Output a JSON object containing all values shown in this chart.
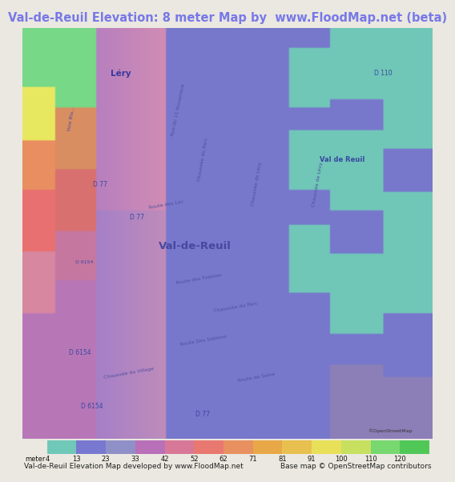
{
  "title": "Val-de-Reuil Elevation: 8 meter Map by  www.FloodMap.net (beta)",
  "title_color": "#7878e8",
  "title_fontsize": 10.5,
  "title_bg": "#eae8e0",
  "background_color": "#eae8e0",
  "colorbar_values": [
    4,
    13,
    23,
    33,
    42,
    52,
    62,
    71,
    81,
    91,
    100,
    110,
    120
  ],
  "colorbar_colors": [
    "#70c8b8",
    "#7878d0",
    "#9090c8",
    "#b870b8",
    "#d87898",
    "#e87870",
    "#e89060",
    "#e8a848",
    "#e8c050",
    "#e8e058",
    "#c8e060",
    "#78d870",
    "#50c858"
  ],
  "colorbar_label": "meter",
  "footer_left": "Val-de-Reuil Elevation Map developed by www.FloodMap.net",
  "footer_right": "Base map © OpenStreetMap contributors",
  "footer_fontsize": 6.5,
  "map_colors": {
    "deep_blue": "#7878c8",
    "medium_blue": "#8888cc",
    "light_blue": "#9090d0",
    "purple": "#a878b8",
    "pink": "#c888a8",
    "light_pink": "#d898b0",
    "teal": "#70c8b8",
    "light_teal": "#88d8c0",
    "red": "#e07060",
    "orange_red": "#d86858",
    "salmon": "#e09080",
    "yellow": "#e8e060",
    "yellow_green": "#c8e060",
    "green": "#78d870",
    "dark": "#404060",
    "road_color": "#c8c8e0",
    "map_text": "#5050a0"
  },
  "osm_logo_color": "#444444"
}
